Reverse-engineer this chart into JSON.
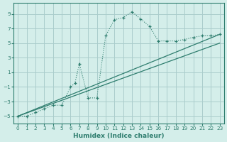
{
  "xlabel": "Humidex (Indice chaleur)",
  "background_color": "#d4eeea",
  "grid_color": "#aacccc",
  "line_color": "#2e7d6e",
  "xlim": [
    -0.5,
    23.5
  ],
  "ylim": [
    -6.0,
    10.5
  ],
  "yticks": [
    -5,
    -3,
    -1,
    1,
    3,
    5,
    7,
    9
  ],
  "xticks": [
    0,
    1,
    2,
    3,
    4,
    5,
    6,
    7,
    8,
    9,
    10,
    11,
    12,
    13,
    14,
    15,
    16,
    17,
    18,
    19,
    20,
    21,
    22,
    23
  ],
  "curve_x": [
    0,
    1,
    2,
    3,
    4,
    5,
    6,
    6.5,
    7,
    8,
    9,
    10,
    11,
    12,
    13,
    14,
    15,
    16,
    17,
    18,
    19,
    20,
    21,
    22,
    23
  ],
  "curve_y": [
    -5,
    -5,
    -4.5,
    -4.0,
    -3.5,
    -3.5,
    -1.0,
    -0.5,
    2.2,
    -2.5,
    -2.5,
    6.0,
    8.2,
    8.5,
    9.3,
    8.3,
    7.3,
    5.3,
    5.3,
    5.3,
    5.5,
    5.8,
    6.0,
    6.0,
    6.2
  ],
  "line2_x": [
    0,
    23
  ],
  "line2_y": [
    -5.0,
    6.2
  ],
  "line3_x": [
    0,
    23
  ],
  "line3_y": [
    -5.0,
    5.0
  ]
}
